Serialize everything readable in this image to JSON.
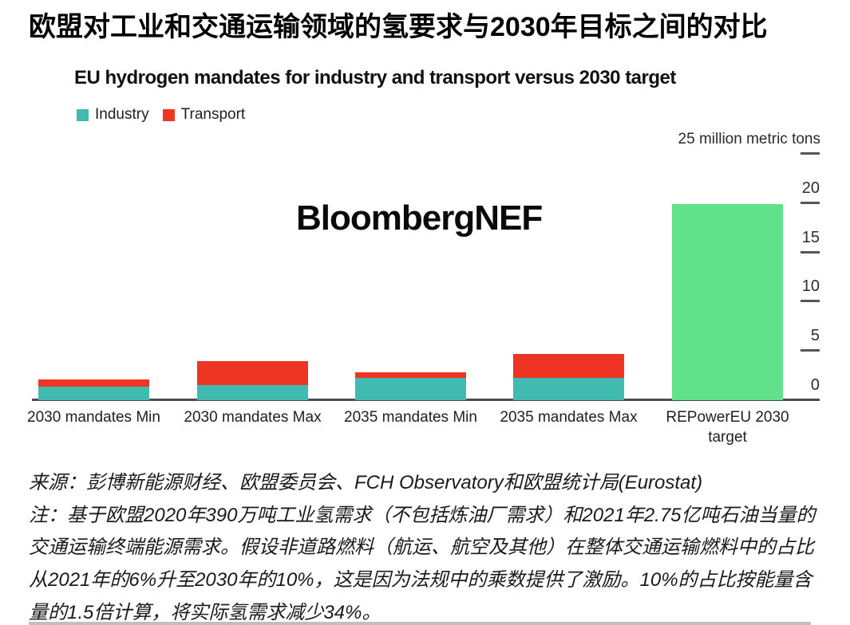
{
  "page": {
    "title_zh": "欧盟对工业和交通运输领域的氢要求与2030年目标之间的对比"
  },
  "chart": {
    "title_en": "EU hydrogen mandates for industry and transport versus 2030 target",
    "watermark": "BloombergNEF"
  },
  "chart_data": {
    "type": "bar",
    "stacked": true,
    "title": "EU hydrogen mandates for industry and transport versus 2030 target",
    "unit_label": "25 million metric tons",
    "categories": [
      "2030 mandates Min",
      "2030 mandates Max",
      "2035 mandates Min",
      "2035 mandates Max",
      "REPowerEU 2030 target"
    ],
    "category_label_lines": [
      [
        "2030 mandates Min"
      ],
      [
        "2030 mandates Max"
      ],
      [
        "2035 mandates Min"
      ],
      [
        "2035 mandates Max"
      ],
      [
        "REPowerEU 2030",
        "target"
      ]
    ],
    "series": [
      {
        "name": "Industry",
        "color": "#41bbb0",
        "values": [
          1.4,
          1.5,
          2.3,
          2.3,
          0
        ]
      },
      {
        "name": "Transport",
        "color": "#ee3423",
        "values": [
          0.7,
          2.5,
          0.5,
          2.4,
          0
        ]
      },
      {
        "name": "REPowerEU 2030 target",
        "color": "#62e18b",
        "values": [
          0,
          0,
          0,
          0,
          19.9
        ]
      }
    ],
    "y_axis": {
      "side": "right",
      "ylim": [
        0,
        25
      ],
      "tick_labels": [
        20,
        15,
        10,
        5,
        0
      ],
      "dash_values": [
        25,
        20,
        15,
        10,
        5
      ],
      "grid": false
    },
    "legend_position": "top-left"
  },
  "notes": {
    "source_line": "来源：彭博新能源财经、欧盟委员会、FCH Observatory和欧盟统计局(Eurostat)",
    "lines": [
      "来源：彭博新能源财经、欧盟委员会、FCH Observatory和欧盟统计局(Eurostat)",
      "注：基于欧盟2020年390万吨工业氢需求（不包括炼油厂需求）和2021年2.75亿吨石油当量的",
      "交通运输终端能源需求。假设非道路燃料（航运、航空及其他）在整体交通运输燃料中的占比",
      "从2021年的6%升至2030年的10%，这是因为法规中的乘数提供了激励。10%的占比按能量含",
      "量的1.5倍计算，将实际氢需求减少34%。"
    ]
  },
  "colors": {
    "industry": "#41bbb0",
    "transport": "#ee3423",
    "target_green": "#62e18b",
    "axis_line": "#4d4d4d",
    "tick_dash": "#55565a",
    "text": "#000000"
  }
}
